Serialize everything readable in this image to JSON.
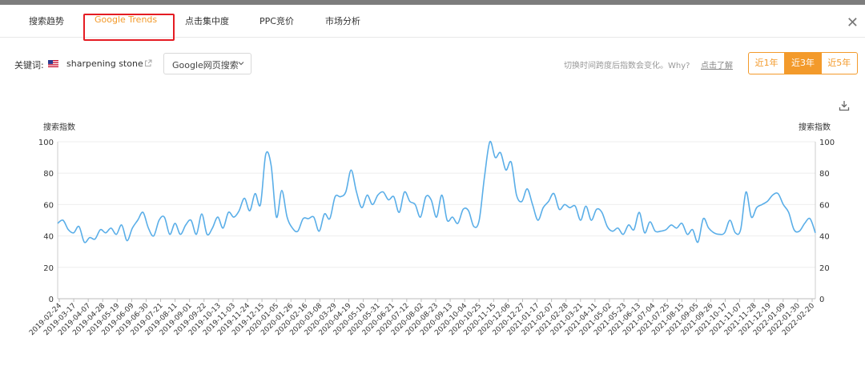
{
  "tabs": [
    {
      "label": "搜索趋势",
      "active": false
    },
    {
      "label": "Google Trends",
      "active": true
    },
    {
      "label": "点击集中度",
      "active": false
    },
    {
      "label": "PPC竞价",
      "active": false
    },
    {
      "label": "市场分析",
      "active": false
    }
  ],
  "close_icon": "close-icon",
  "keyword": {
    "label": "关键词:",
    "flag": "us-flag-icon",
    "value": "sharpening stone"
  },
  "source_select": {
    "value": "Google网页搜索"
  },
  "hint": {
    "text": "切换时间跨度后指数会变化。Why?",
    "link": "点击了解"
  },
  "range_buttons": [
    {
      "label": "近1年",
      "selected": false
    },
    {
      "label": "近3年",
      "selected": true
    },
    {
      "label": "近5年",
      "selected": false
    }
  ],
  "colors": {
    "accent": "#f39a2b",
    "line": "#5aaee8",
    "highlight_box": "#e51c23"
  },
  "chart_data": {
    "type": "line",
    "ylabel_left": "搜索指数",
    "ylabel_right": "搜索指数",
    "ylim": [
      0,
      100
    ],
    "yticks": [
      0,
      20,
      40,
      60,
      80,
      100
    ],
    "grid": true,
    "x_tick_labels": [
      "2019-02-24",
      "2019-03-17",
      "2019-04-07",
      "2019-04-28",
      "2019-05-19",
      "2019-06-09",
      "2019-06-30",
      "2019-07-21",
      "2019-08-11",
      "2019-09-01",
      "2019-09-22",
      "2019-10-13",
      "2019-11-03",
      "2019-11-24",
      "2019-12-15",
      "2020-01-05",
      "2020-01-26",
      "2020-02-16",
      "2020-03-08",
      "2020-03-29",
      "2020-04-19",
      "2020-05-10",
      "2020-05-31",
      "2020-06-21",
      "2020-07-12",
      "2020-08-02",
      "2020-08-23",
      "2020-09-13",
      "2020-10-04",
      "2020-10-25",
      "2020-11-15",
      "2020-12-06",
      "2020-12-27",
      "2021-01-17",
      "2021-02-07",
      "2021-02-28",
      "2021-03-21",
      "2021-04-11",
      "2021-05-02",
      "2021-05-23",
      "2021-06-13",
      "2021-07-04",
      "2021-07-25",
      "2021-08-15",
      "2021-09-05",
      "2021-09-26",
      "2021-10-17",
      "2021-11-07",
      "2021-11-28",
      "2021-12-19",
      "2022-01-09",
      "2022-01-30",
      "2022-02-20"
    ],
    "series": [
      {
        "values": [
          48,
          50,
          44,
          42,
          46,
          36,
          39,
          38,
          44,
          42,
          45,
          41,
          47,
          37,
          45,
          50,
          55,
          45,
          40,
          50,
          52,
          41,
          48,
          41,
          47,
          50,
          41,
          54,
          41,
          45,
          52,
          45,
          55,
          52,
          56,
          64,
          56,
          67,
          60,
          92,
          85,
          52,
          69,
          52,
          45,
          43,
          51,
          51,
          52,
          43,
          54,
          51,
          65,
          65,
          68,
          82,
          68,
          58,
          66,
          60,
          66,
          68,
          63,
          65,
          55,
          68,
          62,
          60,
          52,
          65,
          63,
          52,
          66,
          50,
          52,
          48,
          57,
          56,
          46,
          50,
          78,
          100,
          90,
          93,
          82,
          87,
          66,
          62,
          70,
          60,
          50,
          58,
          62,
          67,
          57,
          60,
          58,
          59,
          50,
          59,
          50,
          57,
          55,
          46,
          43,
          45,
          41,
          47,
          44,
          55,
          42,
          49,
          43,
          43,
          44,
          47,
          45,
          48,
          41,
          44,
          36,
          51,
          45,
          42,
          41,
          42,
          50,
          42,
          44,
          68,
          52,
          58,
          60,
          62,
          66,
          67,
          60,
          55,
          44,
          43,
          48,
          51,
          42
        ]
      }
    ]
  }
}
